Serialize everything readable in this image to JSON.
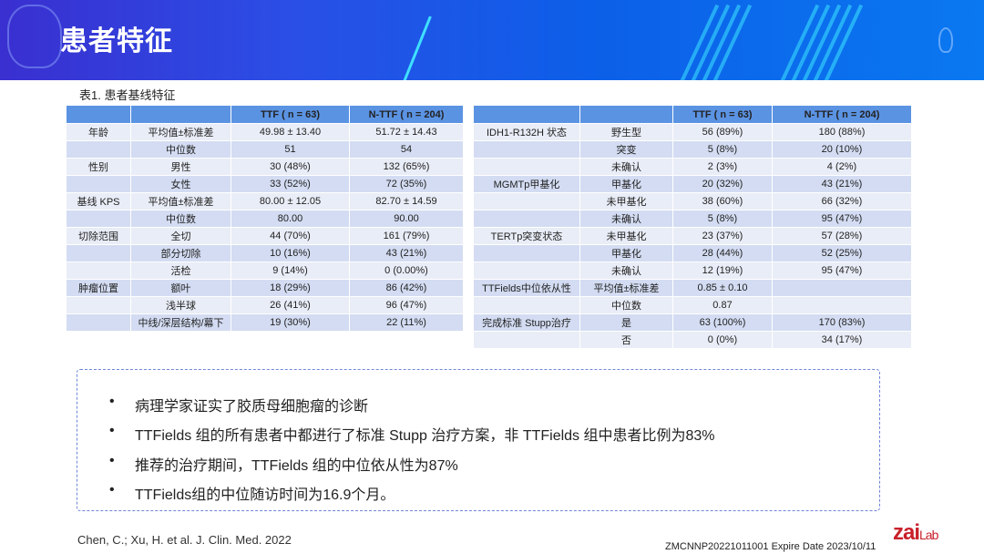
{
  "header": {
    "title": "患者特征"
  },
  "table_caption": "表1. 患者基线特征",
  "table1": {
    "headers": [
      "",
      "",
      "TTF ( n = 63)",
      "N-TTF ( n = 204)"
    ],
    "rows": [
      [
        "年龄",
        "平均值±标准差",
        "49.98 ± 13.40",
        "51.72 ± 14.43"
      ],
      [
        "",
        "中位数",
        "51",
        "54"
      ],
      [
        "性别",
        "男性",
        "30 (48%)",
        "132 (65%)"
      ],
      [
        "",
        "女性",
        "33 (52%)",
        "72 (35%)"
      ],
      [
        "基线 KPS",
        "平均值±标准差",
        "80.00 ± 12.05",
        "82.70 ± 14.59"
      ],
      [
        "",
        "中位数",
        "80.00",
        "90.00"
      ],
      [
        "切除范围",
        "全切",
        "44 (70%)",
        "161 (79%)"
      ],
      [
        "",
        "部分切除",
        "10 (16%)",
        "43 (21%)"
      ],
      [
        "",
        "活检",
        "9 (14%)",
        "0 (0.00%)"
      ],
      [
        "肿瘤位置",
        "额叶",
        "18 (29%)",
        "86 (42%)"
      ],
      [
        "",
        "浅半球",
        "26 (41%)",
        "96 (47%)"
      ],
      [
        "",
        "中线/深层结构/幕下",
        "19 (30%)",
        "22 (11%)"
      ]
    ]
  },
  "table2": {
    "headers": [
      "",
      "",
      "TTF ( n = 63)",
      "N-TTF ( n = 204)"
    ],
    "rows": [
      [
        "IDH1-R132H 状态",
        "野生型",
        "56 (89%)",
        "180 (88%)"
      ],
      [
        "",
        "突变",
        "5 (8%)",
        "20 (10%)"
      ],
      [
        "",
        "未确认",
        "2 (3%)",
        "4 (2%)"
      ],
      [
        "MGMTp甲基化",
        "甲基化",
        "20 (32%)",
        "43 (21%)"
      ],
      [
        "",
        "未甲基化",
        "38 (60%)",
        "66 (32%)"
      ],
      [
        "",
        "未确认",
        "5 (8%)",
        "95 (47%)"
      ],
      [
        "TERTp突变状态",
        "未甲基化",
        "23 (37%)",
        "57 (28%)"
      ],
      [
        "",
        "甲基化",
        "28 (44%)",
        "52 (25%)"
      ],
      [
        "",
        "未确认",
        "12 (19%)",
        "95 (47%)"
      ],
      [
        "TTFields中位依从性",
        "平均值±标准差",
        "0.85 ± 0.10",
        ""
      ],
      [
        "",
        "中位数",
        "0.87",
        ""
      ],
      [
        "完成标准 Stupp治疗",
        "是",
        "63 (100%)",
        "170 (83%)"
      ],
      [
        "",
        "否",
        "0 (0%)",
        "34 (17%)"
      ]
    ]
  },
  "bullets": [
    "病理学家证实了胶质母细胞瘤的诊断",
    "TTFields 组的所有患者中都进行了标准 Stupp 治疗方案，非 TTFields 组中患者比例为83%",
    "推荐的治疗期间，TTFields 组的中位依从性为87%",
    "TTFields组的中位随访时间为16.9个月。"
  ],
  "bullet_symbol": "•",
  "reference": "Chen, C.; Xu, H. et al. J. Clin. Med. 2022",
  "footer_code": "ZMCNNP20221011001 Expire Date 2023/10/11",
  "logo": {
    "main": "zai",
    "sub": "Lab"
  }
}
